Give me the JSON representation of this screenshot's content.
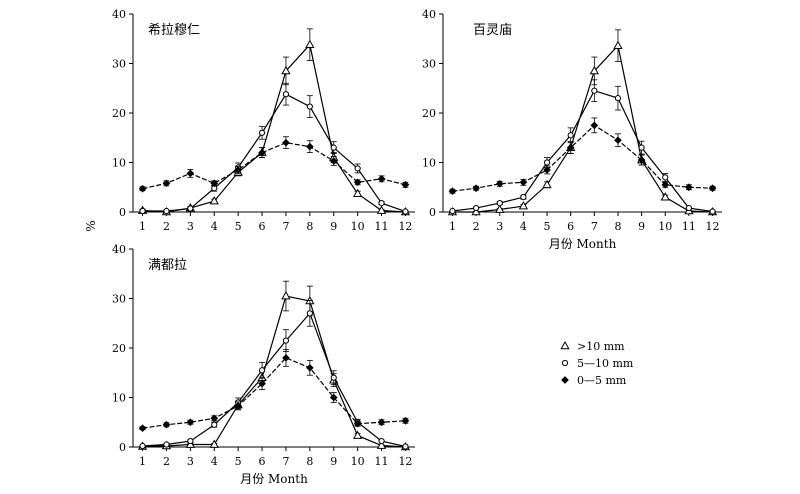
{
  "ylabel": "%",
  "legend": {
    "position": "right",
    "entries": [
      {
        "label": ">10 mm",
        "marker": "triangle-open"
      },
      {
        "label": "5—10 mm",
        "marker": "circle-open"
      },
      {
        "label": "0—5 mm",
        "marker": "diamond-filled"
      }
    ]
  },
  "chart_data": [
    {
      "type": "line",
      "title": "希拉穆仁",
      "xlabel": "",
      "x": [
        1,
        2,
        3,
        4,
        5,
        6,
        7,
        8,
        9,
        10,
        11,
        12
      ],
      "xlim": [
        0.6,
        12.4
      ],
      "ylim": [
        0,
        40
      ],
      "yticks": [
        0,
        10,
        20,
        30,
        40
      ],
      "series": [
        {
          "name": ">10 mm",
          "marker": "triangle-open",
          "values": [
            0.3,
            0,
            0.8,
            2.2,
            8.0,
            12.0,
            28.5,
            33.8,
            11.0,
            3.7,
            0.3,
            0
          ],
          "errors": [
            0.3,
            0.2,
            0.3,
            0.4,
            0.7,
            1.0,
            2.8,
            3.2,
            1.0,
            0.5,
            0.2,
            0
          ]
        },
        {
          "name": "5—10 mm",
          "marker": "circle-open",
          "values": [
            0.2,
            0.2,
            0.7,
            4.8,
            9.0,
            16.0,
            23.8,
            21.3,
            13.0,
            8.8,
            1.8,
            0.1
          ],
          "errors": [
            0.2,
            0.2,
            0.3,
            0.6,
            0.9,
            1.3,
            2.2,
            2.2,
            1.2,
            0.9,
            0.3,
            0.1
          ]
        },
        {
          "name": "0—5 mm",
          "marker": "diamond-filled",
          "values": [
            4.7,
            5.8,
            7.8,
            5.8,
            8.5,
            12.0,
            14.0,
            13.2,
            10.3,
            6.0,
            6.7,
            5.5
          ],
          "errors": [
            0.4,
            0.5,
            0.8,
            0.5,
            0.7,
            1.0,
            1.2,
            1.2,
            0.9,
            0.5,
            0.6,
            0.5
          ]
        }
      ]
    },
    {
      "type": "line",
      "title": "百灵庙",
      "xlabel": "月份 Month",
      "x": [
        1,
        2,
        3,
        4,
        5,
        6,
        7,
        8,
        9,
        10,
        11,
        12
      ],
      "xlim": [
        0.6,
        12.4
      ],
      "ylim": [
        0,
        40
      ],
      "yticks": [
        0,
        10,
        20,
        30,
        40
      ],
      "series": [
        {
          "name": ">10 mm",
          "marker": "triangle-open",
          "values": [
            0,
            0,
            0.5,
            1.2,
            5.5,
            13.0,
            28.5,
            33.6,
            10.5,
            3.0,
            0.2,
            0
          ],
          "errors": [
            0,
            0.1,
            0.2,
            0.3,
            0.6,
            1.2,
            2.8,
            3.2,
            1.0,
            0.4,
            0.1,
            0
          ]
        },
        {
          "name": "5—10 mm",
          "marker": "circle-open",
          "values": [
            0.2,
            0.8,
            1.8,
            3.0,
            10.0,
            15.5,
            24.5,
            23.0,
            13.0,
            7.0,
            0.8,
            0.1
          ],
          "errors": [
            0.1,
            0.2,
            0.3,
            0.4,
            1.0,
            1.5,
            2.2,
            2.4,
            1.3,
            0.8,
            0.2,
            0.1
          ]
        },
        {
          "name": "0—5 mm",
          "marker": "diamond-filled",
          "values": [
            4.2,
            4.8,
            5.7,
            6.0,
            8.5,
            13.0,
            17.5,
            14.5,
            10.5,
            5.5,
            5.0,
            4.8
          ],
          "errors": [
            0.4,
            0.4,
            0.5,
            0.6,
            0.8,
            1.2,
            1.5,
            1.3,
            1.0,
            0.5,
            0.5,
            0.4
          ]
        }
      ]
    },
    {
      "type": "line",
      "title": "满都拉",
      "xlabel": "月份 Month",
      "x": [
        1,
        2,
        3,
        4,
        5,
        6,
        7,
        8,
        9,
        10,
        11,
        12
      ],
      "xlim": [
        0.6,
        12.4
      ],
      "ylim": [
        0,
        40
      ],
      "yticks": [
        0,
        10,
        20,
        30,
        40
      ],
      "series": [
        {
          "name": ">10 mm",
          "marker": "triangle-open",
          "values": [
            0.1,
            0.2,
            0.5,
            0.5,
            8.5,
            14.0,
            30.5,
            29.5,
            13.5,
            2.3,
            0.3,
            0
          ],
          "errors": [
            0.1,
            0.1,
            0.2,
            0.2,
            0.8,
            1.3,
            3.0,
            3.0,
            1.3,
            0.4,
            0.1,
            0
          ]
        },
        {
          "name": "5—10 mm",
          "marker": "circle-open",
          "values": [
            0.2,
            0.5,
            1.2,
            4.5,
            9.0,
            15.5,
            21.5,
            27.0,
            14.0,
            5.0,
            1.2,
            0.1
          ],
          "errors": [
            0.1,
            0.2,
            0.3,
            0.5,
            0.9,
            1.6,
            2.2,
            2.6,
            1.4,
            0.6,
            0.2,
            0.1
          ]
        },
        {
          "name": "0—5 mm",
          "marker": "diamond-filled",
          "values": [
            3.8,
            4.5,
            5.0,
            5.8,
            8.3,
            12.8,
            18.0,
            16.0,
            10.0,
            4.7,
            5.0,
            5.3
          ],
          "errors": [
            0.3,
            0.4,
            0.4,
            0.5,
            0.8,
            1.2,
            1.7,
            1.5,
            1.0,
            0.5,
            0.5,
            0.5
          ]
        }
      ]
    }
  ]
}
